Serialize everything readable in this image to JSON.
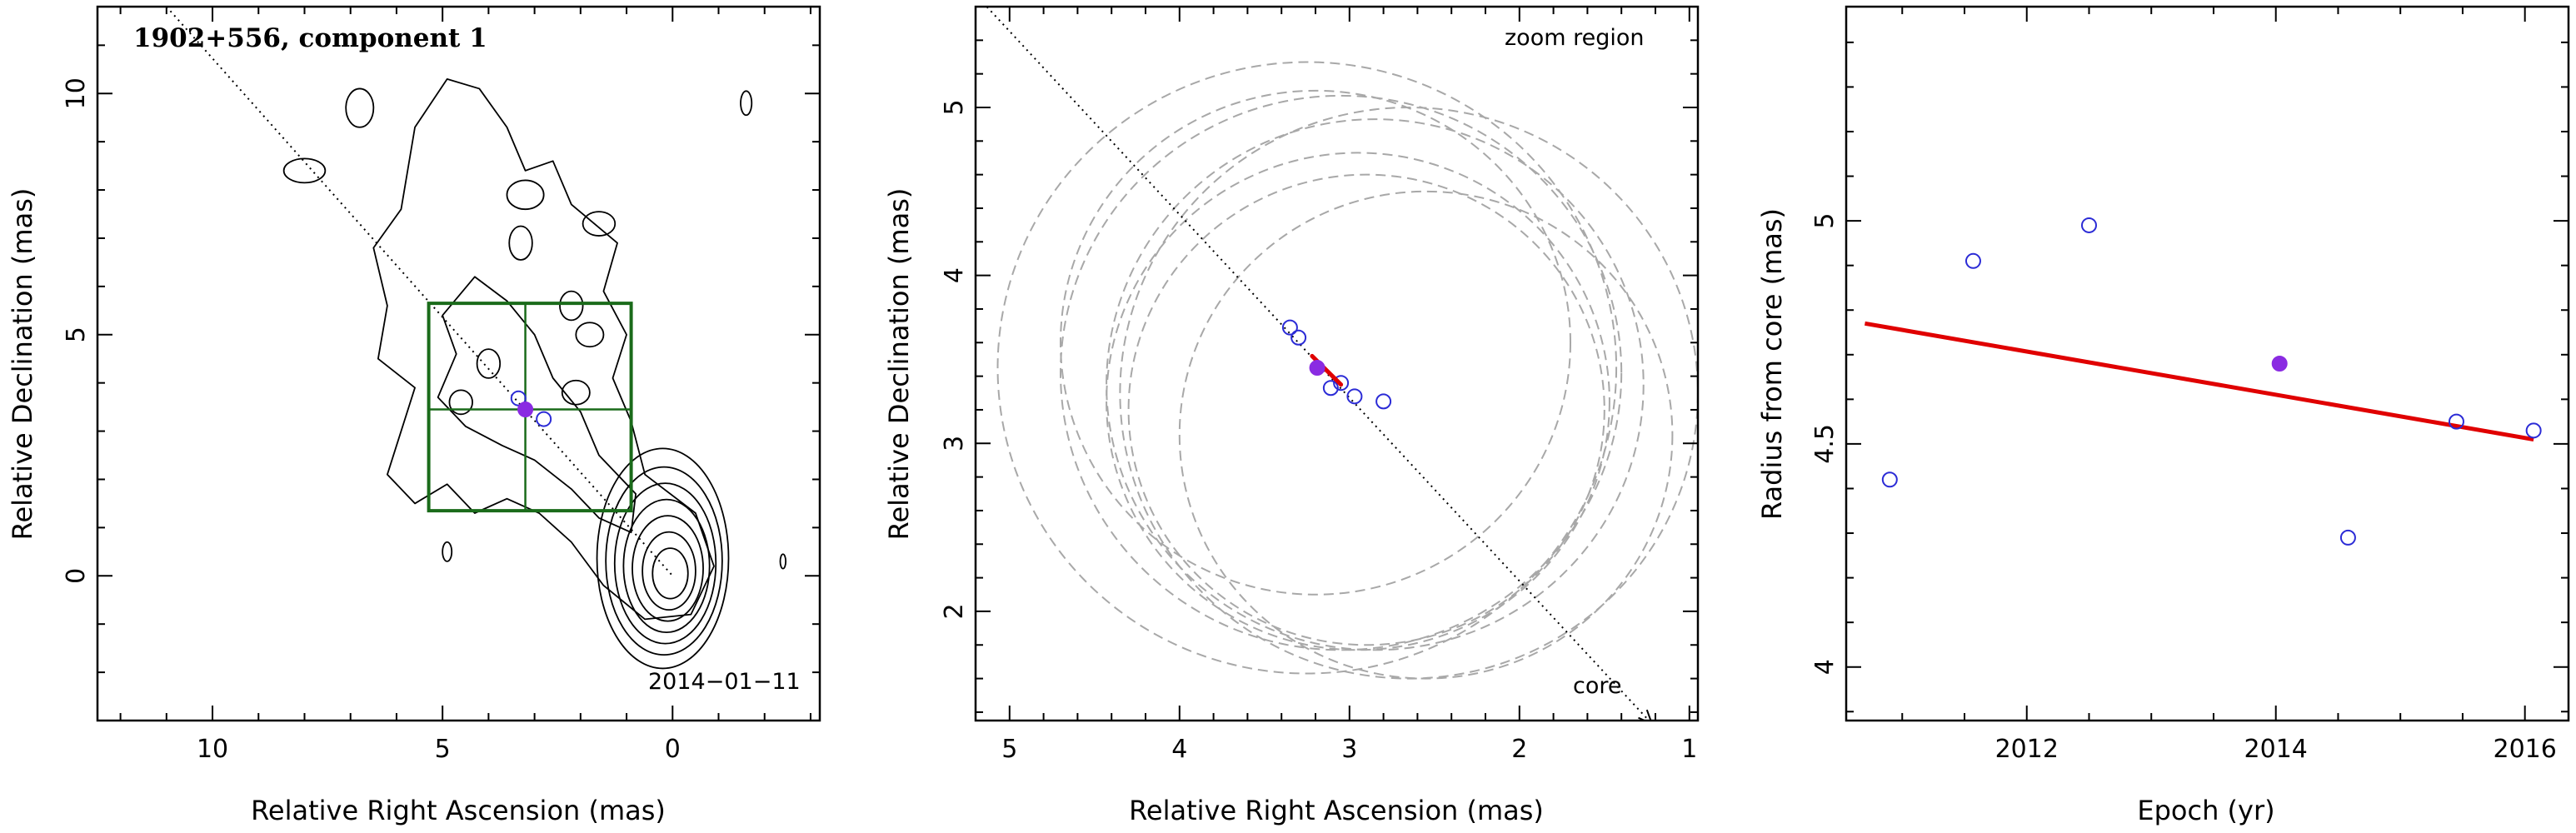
{
  "colors": {
    "frame": "#000000",
    "contour": "#000000",
    "zoom_box": "#1a6b1a",
    "open_marker": "#2b2bd6",
    "filled_marker": "#8a2be2",
    "fit_line": "#e00000",
    "dashed_circle": "#a8a8a8",
    "pa_line": "#000000"
  },
  "chart_data": [
    {
      "type": "scatter",
      "panel": "contour-map",
      "title": "1902+556, component 1",
      "annotation": "2014−01−11",
      "xlabel": "Relative Right Ascension (mas)",
      "ylabel": "Relative Declination (mas)",
      "xlim": [
        12.5,
        -3.2
      ],
      "ylim": [
        -3.0,
        11.8
      ],
      "xticks": [
        10,
        5,
        0
      ],
      "yticks": [
        0,
        5,
        10
      ],
      "contour_center": [
        0.05,
        0.05
      ],
      "position_angle_line": {
        "from": [
          11.0,
          11.8
        ],
        "to": [
          0.0,
          0.0
        ]
      },
      "zoom_region": {
        "x": [
          5.3,
          0.9
        ],
        "y": [
          1.35,
          5.65
        ]
      },
      "crosshair": {
        "x": 3.2,
        "y": 3.45
      },
      "open_points": [
        {
          "x": 3.35,
          "y": 3.68
        },
        {
          "x": 2.8,
          "y": 3.25
        }
      ],
      "filled_points": [
        {
          "x": 3.2,
          "y": 3.45
        }
      ]
    },
    {
      "type": "scatter",
      "panel": "zoom-region",
      "annotation": "zoom region",
      "arrow_label": "core",
      "xlabel": "Relative Right Ascension (mas)",
      "ylabel": "Relative Declination (mas)",
      "xlim": [
        5.2,
        0.95
      ],
      "ylim": [
        1.35,
        5.6
      ],
      "xticks": [
        5,
        4,
        3,
        2,
        1
      ],
      "yticks": [
        2,
        3,
        4,
        5
      ],
      "position_angle_line": {
        "from": [
          5.18,
          5.65
        ],
        "to": [
          1.22,
          1.33
        ]
      },
      "error_circles": [
        {
          "x": 2.95,
          "y": 3.25,
          "r": 1.48
        },
        {
          "x": 3.05,
          "y": 3.42,
          "r": 1.65
        },
        {
          "x": 2.85,
          "y": 3.35,
          "r": 1.58
        },
        {
          "x": 3.25,
          "y": 3.45,
          "r": 1.82
        },
        {
          "x": 2.65,
          "y": 3.3,
          "r": 1.7
        },
        {
          "x": 2.9,
          "y": 3.2,
          "r": 1.4
        },
        {
          "x": 3.2,
          "y": 3.6,
          "r": 1.5
        },
        {
          "x": 2.55,
          "y": 3.05,
          "r": 1.45
        }
      ],
      "open_points": [
        {
          "x": 3.35,
          "y": 3.69
        },
        {
          "x": 3.3,
          "y": 3.63
        },
        {
          "x": 3.11,
          "y": 3.33
        },
        {
          "x": 3.05,
          "y": 3.36
        },
        {
          "x": 2.97,
          "y": 3.28
        },
        {
          "x": 2.8,
          "y": 3.25
        }
      ],
      "filled_points": [
        {
          "x": 3.19,
          "y": 3.45
        }
      ],
      "fit_segment": {
        "from": [
          3.22,
          3.52
        ],
        "to": [
          3.05,
          3.35
        ]
      }
    },
    {
      "type": "scatter",
      "panel": "radius-vs-epoch",
      "xlabel": "Epoch (yr)",
      "ylabel": "Radius from core (mas)",
      "xlim": [
        2010.55,
        2016.35
      ],
      "ylim": [
        3.88,
        5.48
      ],
      "xticks": [
        2012,
        2014,
        2016
      ],
      "yticks": [
        4,
        4.5,
        5
      ],
      "open_points": [
        {
          "x": 2010.9,
          "y": 4.42
        },
        {
          "x": 2011.57,
          "y": 4.91
        },
        {
          "x": 2012.5,
          "y": 4.99
        },
        {
          "x": 2014.58,
          "y": 4.29
        },
        {
          "x": 2015.45,
          "y": 4.55
        },
        {
          "x": 2016.07,
          "y": 4.53
        }
      ],
      "filled_points": [
        {
          "x": 2014.03,
          "y": 4.68
        }
      ],
      "fit_line": {
        "x": [
          2010.7,
          2016.07
        ],
        "y": [
          4.77,
          4.51
        ]
      }
    }
  ]
}
